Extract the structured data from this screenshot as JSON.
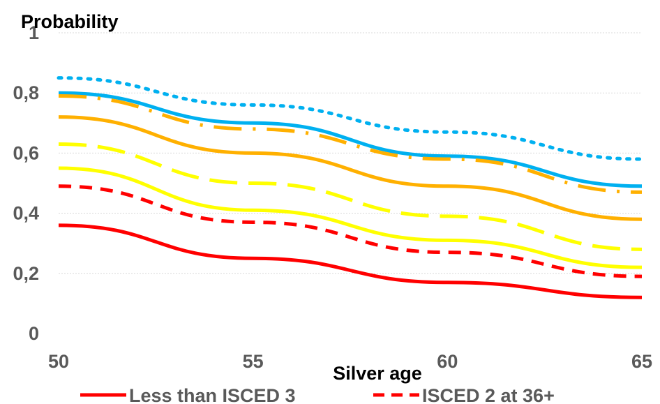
{
  "chart_data": {
    "type": "line",
    "title": "",
    "ylabel": "Probability",
    "xlabel": "Silver age",
    "xlim": [
      50,
      65
    ],
    "ylim": [
      0,
      1
    ],
    "x": [
      50,
      55,
      60,
      65
    ],
    "x_ticks": [
      "50",
      "55",
      "60",
      "65"
    ],
    "y_ticks": [
      "0",
      "0,2",
      "0,4",
      "0,6",
      "0,8",
      "1"
    ],
    "grid": "horizontal",
    "legend_position": "bottom",
    "series": [
      {
        "name": "Less than ISCED 3",
        "color": "#ff0000",
        "dash": "solid",
        "values": [
          0.36,
          0.25,
          0.17,
          0.12
        ]
      },
      {
        "name": "ISCED 2 at 36+",
        "color": "#ff0000",
        "dash": "dash",
        "values": [
          0.49,
          0.37,
          0.27,
          0.19
        ]
      },
      {
        "color": "#ffff00",
        "dash": "solid",
        "values": [
          0.55,
          0.41,
          0.31,
          0.22
        ]
      },
      {
        "color": "#ffff00",
        "dash": "longdash",
        "values": [
          0.63,
          0.5,
          0.39,
          0.28
        ]
      },
      {
        "color": "#ffb000",
        "dash": "solid",
        "values": [
          0.72,
          0.6,
          0.49,
          0.38
        ]
      },
      {
        "color": "#ffb000",
        "dash": "longdashdot",
        "values": [
          0.79,
          0.68,
          0.58,
          0.47
        ]
      },
      {
        "color": "#00b0f0",
        "dash": "solid",
        "values": [
          0.8,
          0.7,
          0.59,
          0.49
        ]
      },
      {
        "color": "#00b0f0",
        "dash": "dot",
        "values": [
          0.85,
          0.76,
          0.67,
          0.58
        ]
      }
    ]
  }
}
